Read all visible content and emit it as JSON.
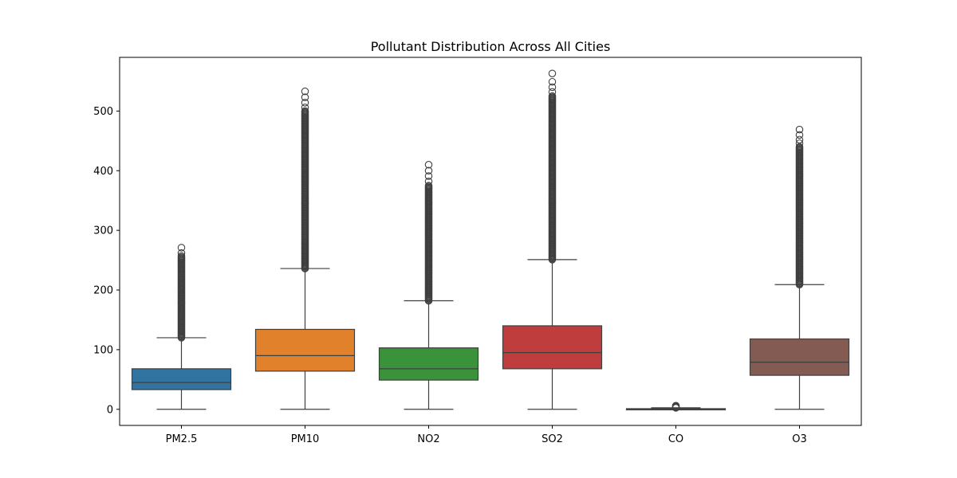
{
  "chart_data": {
    "type": "box",
    "title": "Pollutant Distribution Across All Cities",
    "xlabel": "",
    "ylabel": "",
    "ylim": [
      -27,
      590
    ],
    "yticks": [
      0,
      100,
      200,
      300,
      400,
      500
    ],
    "grid": false,
    "legend": "none",
    "categories": [
      "PM2.5",
      "PM10",
      "NO2",
      "SO2",
      "CO",
      "O3"
    ],
    "series": [
      {
        "category": "PM2.5",
        "color": "#3274a1",
        "whisker_low": 0,
        "q1": 33,
        "median": 45,
        "q3": 68,
        "whisker_high": 120,
        "outliers_from": 120,
        "outliers_to": 255,
        "outliers_extra": [
          257,
          262,
          271
        ]
      },
      {
        "category": "PM10",
        "color": "#e1812c",
        "whisker_low": 0,
        "q1": 64,
        "median": 90,
        "q3": 134,
        "whisker_high": 236,
        "outliers_from": 236,
        "outliers_to": 500,
        "outliers_extra": [
          506,
          514,
          523,
          533
        ]
      },
      {
        "category": "NO2",
        "color": "#3a923a",
        "whisker_low": 0,
        "q1": 49,
        "median": 68,
        "q3": 103,
        "whisker_high": 182,
        "outliers_from": 182,
        "outliers_to": 375,
        "outliers_extra": [
          382,
          391,
          400,
          410
        ]
      },
      {
        "category": "SO2",
        "color": "#c03d3e",
        "whisker_low": 0,
        "q1": 68,
        "median": 95,
        "q3": 140,
        "whisker_high": 251,
        "outliers_from": 251,
        "outliers_to": 525,
        "outliers_extra": [
          532,
          540,
          549,
          563
        ]
      },
      {
        "category": "CO",
        "color": "#9372b2",
        "whisker_low": 0,
        "q1": 0.2,
        "median": 0.6,
        "q3": 1.1,
        "whisker_high": 2.5,
        "outliers_from": 2.5,
        "outliers_to": 5,
        "outliers_extra": [
          6
        ]
      },
      {
        "category": "O3",
        "color": "#845b53",
        "whisker_low": 0,
        "q1": 57,
        "median": 79,
        "q3": 118,
        "whisker_high": 209,
        "outliers_from": 209,
        "outliers_to": 440,
        "outliers_extra": [
          446,
          452,
          460,
          469
        ]
      }
    ]
  }
}
